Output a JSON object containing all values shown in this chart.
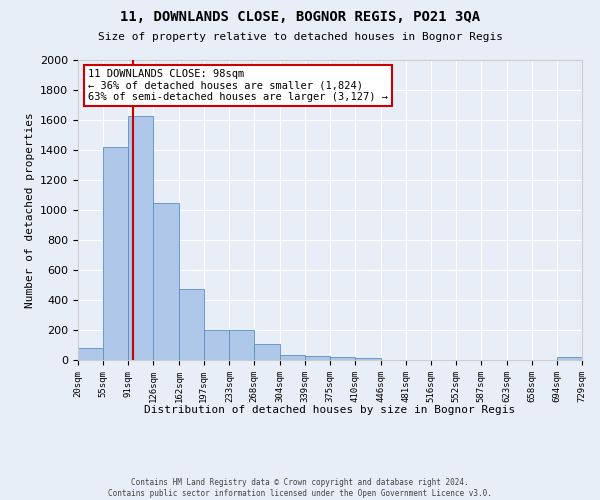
{
  "title": "11, DOWNLANDS CLOSE, BOGNOR REGIS, PO21 3QA",
  "subtitle": "Size of property relative to detached houses in Bognor Regis",
  "xlabel": "Distribution of detached houses by size in Bognor Regis",
  "ylabel": "Number of detached properties",
  "footer_line1": "Contains HM Land Registry data © Crown copyright and database right 2024.",
  "footer_line2": "Contains public sector information licensed under the Open Government Licence v3.0.",
  "annotation_line1": "11 DOWNLANDS CLOSE: 98sqm",
  "annotation_line2": "← 36% of detached houses are smaller (1,824)",
  "annotation_line3": "63% of semi-detached houses are larger (3,127) →",
  "bar_edges": [
    20,
    55,
    91,
    126,
    162,
    197,
    233,
    268,
    304,
    339,
    375,
    410,
    446,
    481,
    516,
    552,
    587,
    623,
    658,
    694,
    729
  ],
  "bar_heights": [
    80,
    1420,
    1630,
    1050,
    475,
    200,
    200,
    105,
    35,
    25,
    20,
    15,
    0,
    0,
    0,
    0,
    0,
    0,
    0,
    20
  ],
  "bar_color": "#aec6e8",
  "bar_edge_color": "#5a8fc2",
  "property_size": 98,
  "vline_color": "#cc0000",
  "background_color": "#e8eef8",
  "ylim": [
    0,
    2000
  ],
  "yticks": [
    0,
    200,
    400,
    600,
    800,
    1000,
    1200,
    1400,
    1600,
    1800,
    2000
  ],
  "annotation_box_facecolor": "#ffffff",
  "annotation_box_edgecolor": "#cc0000",
  "tick_labels": [
    "20sqm",
    "55sqm",
    "91sqm",
    "126sqm",
    "162sqm",
    "197sqm",
    "233sqm",
    "268sqm",
    "304sqm",
    "339sqm",
    "375sqm",
    "410sqm",
    "446sqm",
    "481sqm",
    "516sqm",
    "552sqm",
    "587sqm",
    "623sqm",
    "658sqm",
    "694sqm",
    "729sqm"
  ]
}
